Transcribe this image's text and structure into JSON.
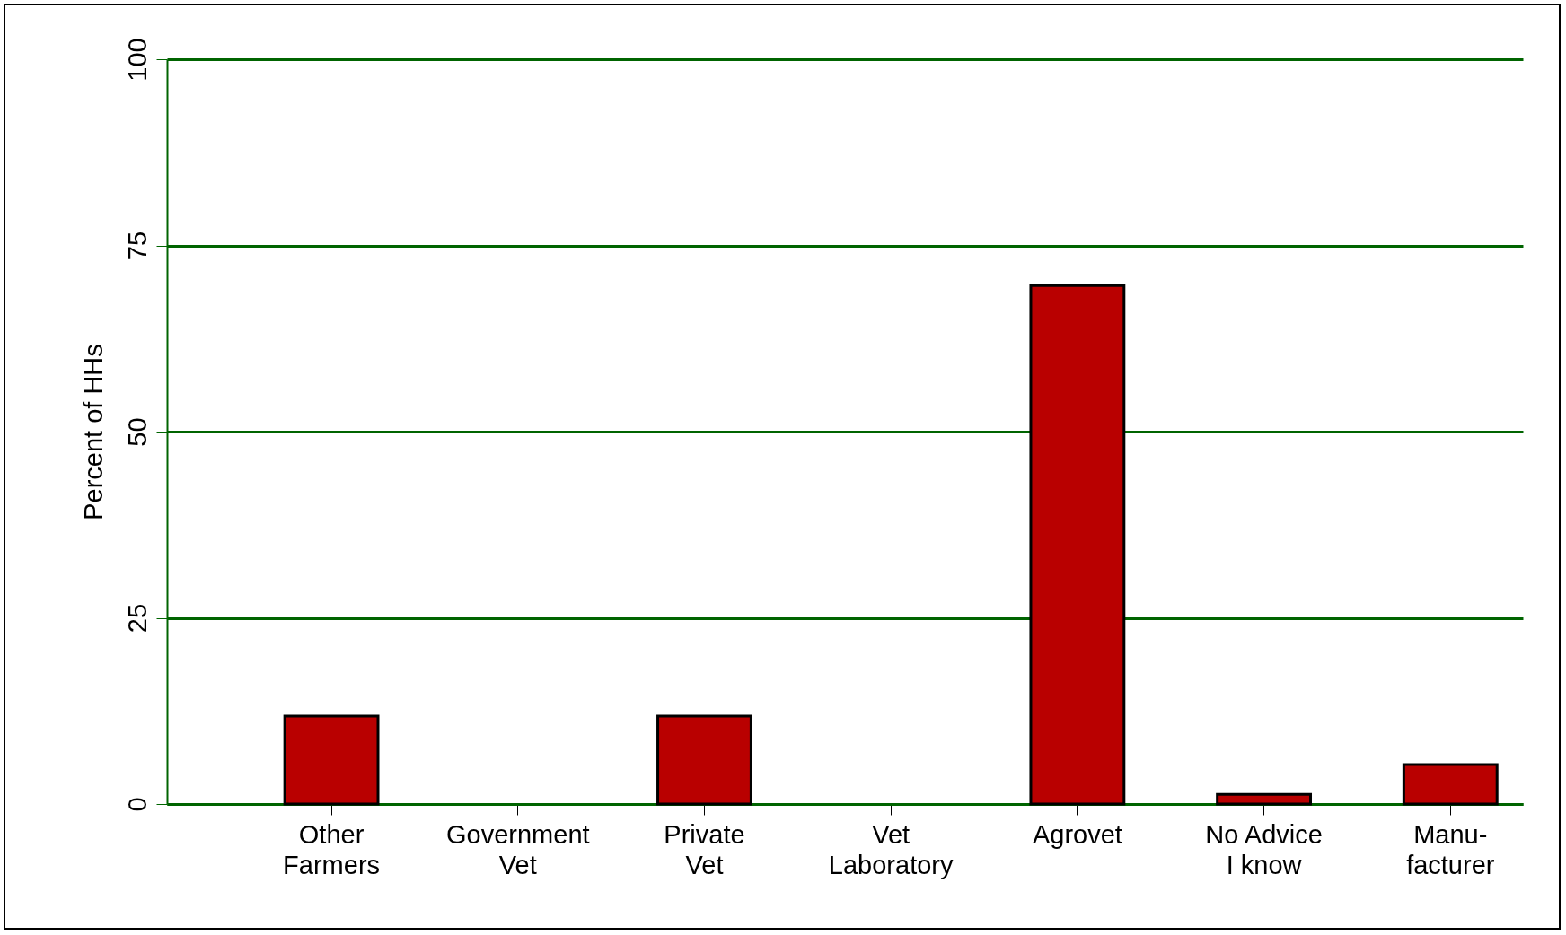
{
  "chart_data": {
    "type": "bar",
    "ylabel": "Percent of HHs",
    "categories": [
      "Other\nFarmers",
      "Government\nVet",
      "Private\nVet",
      "Vet\nLaboratory",
      "Agrovet",
      "No Advice\nI know",
      "Manu-\nfacturer"
    ],
    "values": [
      11.8,
      0,
      11.8,
      0,
      69.6,
      1.3,
      5.3
    ],
    "color": "#b90000",
    "ylim": [
      0,
      100
    ],
    "yticks": [
      0,
      25,
      50,
      75,
      100
    ],
    "grid": "y"
  }
}
